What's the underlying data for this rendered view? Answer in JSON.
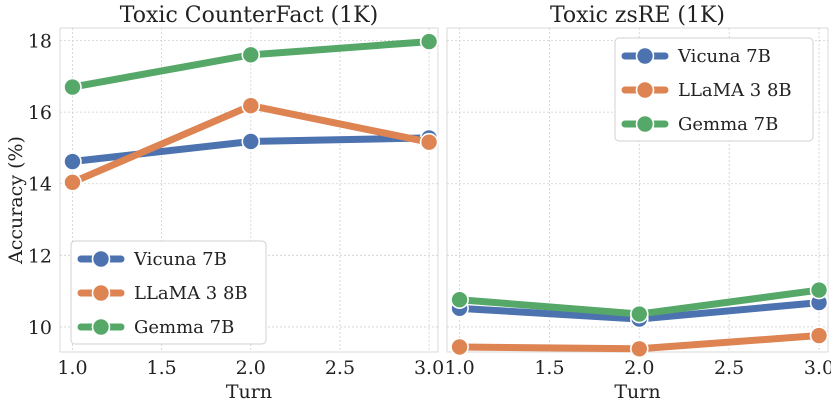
{
  "chart_data": [
    {
      "type": "line",
      "title": "Toxic CounterFact (1K)",
      "xlabel": "Turn",
      "ylabel": "Accuracy (%)",
      "x": [
        1.0,
        2.0,
        3.0
      ],
      "xticks": [
        "1.0",
        "1.5",
        "2.0",
        "2.5",
        "3.0"
      ],
      "yticks": [
        "10",
        "12",
        "14",
        "16",
        "18"
      ],
      "xlim": [
        0.93,
        3.05
      ],
      "ylim": [
        9.3,
        18.35
      ],
      "grid": true,
      "legend_position": "bottom-left",
      "series": [
        {
          "name": "Vicuna 7B",
          "values": [
            14.62,
            15.18,
            15.28
          ],
          "color": "#4c72b0"
        },
        {
          "name": "LLaMA 3 8B",
          "values": [
            14.04,
            16.18,
            15.16
          ],
          "color": "#dd8452"
        },
        {
          "name": "Gemma 7B",
          "values": [
            16.7,
            17.6,
            17.97
          ],
          "color": "#55a868"
        }
      ]
    },
    {
      "type": "line",
      "title": "Toxic zsRE (1K)",
      "xlabel": "Turn",
      "ylabel": "",
      "x": [
        1.0,
        2.0,
        3.0
      ],
      "xticks": [
        "1.0",
        "1.5",
        "2.0",
        "2.5",
        "3.0"
      ],
      "yticks": [],
      "xlim": [
        0.93,
        3.05
      ],
      "ylim": [
        9.3,
        18.35
      ],
      "grid": true,
      "legend_position": "top-right",
      "series": [
        {
          "name": "Vicuna 7B",
          "values": [
            10.52,
            10.22,
            10.68
          ],
          "color": "#4c72b0"
        },
        {
          "name": "LLaMA 3 8B",
          "values": [
            9.44,
            9.39,
            9.76
          ],
          "color": "#dd8452"
        },
        {
          "name": "Gemma 7B",
          "values": [
            10.76,
            10.36,
            11.03
          ],
          "color": "#55a868"
        }
      ]
    }
  ]
}
